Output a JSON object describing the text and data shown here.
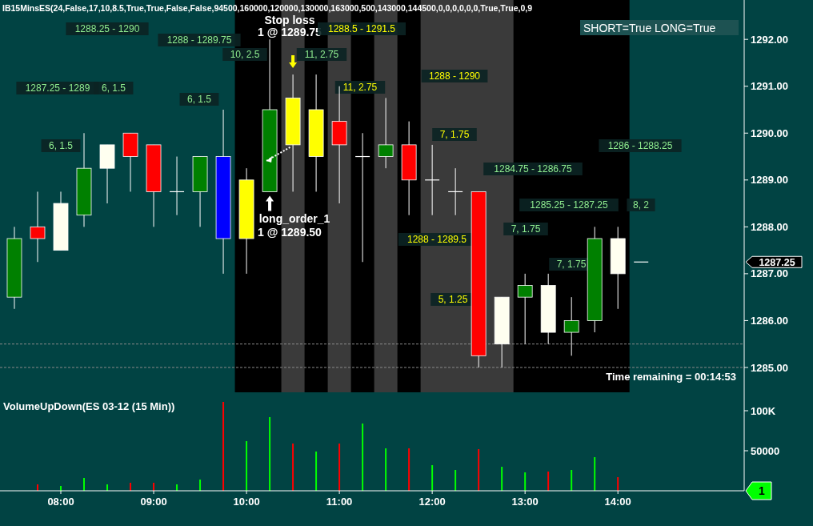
{
  "chart_data": [
    {
      "type": "candlestick",
      "title": "IB15MinsES(24,False,17,10,8.5,True,True,False,False,94500,160000,120000,130000,163000,500,143000,144500,0,0,0,0,0,0,True,True,0,9",
      "x": [
        7.5,
        7.75,
        8,
        8.25,
        8.5,
        8.75,
        9,
        9.25,
        9.5,
        9.75,
        10,
        10.25,
        10.5,
        10.75,
        11,
        11.25,
        11.5,
        11.75,
        12,
        12.25,
        12.5,
        12.75,
        13,
        13.25,
        13.5,
        13.75,
        14,
        14.25
      ],
      "ohlc": [
        [
          1286.5,
          1288,
          1286.25,
          1287.75
        ],
        [
          1288,
          1288.75,
          1287.25,
          1287.75
        ],
        [
          1288.5,
          1288.75,
          1287.5,
          1287.5
        ],
        [
          1288.25,
          1290,
          1288,
          1289.25
        ],
        [
          1289.75,
          1289.75,
          1288.5,
          1289.25
        ],
        [
          1290,
          1290,
          1288.75,
          1289.5
        ],
        [
          1289.75,
          1289.75,
          1288,
          1288.75
        ],
        [
          1288.75,
          1289.5,
          1288.25,
          1288.75
        ],
        [
          1288.75,
          1289.5,
          1288,
          1289.5
        ],
        [
          1289.5,
          1290.5,
          1287,
          1287.75
        ],
        [
          1287.75,
          1289.25,
          1287,
          1289
        ],
        [
          1288.75,
          1292,
          1288.75,
          1290.5
        ],
        [
          1289.75,
          1291.25,
          1288.75,
          1290.75
        ],
        [
          1290.5,
          1291.25,
          1288.75,
          1289.5
        ],
        [
          1290.25,
          1291,
          1288.5,
          1289.75
        ],
        [
          1289.5,
          1290,
          1287.25,
          1289.5
        ],
        [
          1289.5,
          1290.75,
          1289.25,
          1289.75
        ],
        [
          1289.75,
          1290.25,
          1288.25,
          1289
        ],
        [
          1289,
          1289.75,
          1288.25,
          1289
        ],
        [
          1288.75,
          1289.25,
          1288.25,
          1288.75
        ],
        [
          1288.75,
          1288.75,
          1285,
          1285.25
        ],
        [
          1286.5,
          1286.5,
          1285,
          1285.5
        ],
        [
          1286.5,
          1287,
          1285.5,
          1286.75
        ],
        [
          1286.75,
          1287,
          1285.5,
          1285.75
        ],
        [
          1285.75,
          1286.5,
          1285.25,
          1286
        ],
        [
          1286,
          1288,
          1285.75,
          1287.75
        ],
        [
          1287.75,
          1288,
          1286.25,
          1287
        ],
        [
          1287.25,
          1287.25,
          1287.25,
          1287.25
        ]
      ],
      "colors": [
        "#008000",
        "#ff0000",
        "#fffff0",
        "#008000",
        "#fffff0",
        "#ff0000",
        "#ff0000",
        "#ffffff",
        "#008000",
        "#0000ff",
        "#ffff00",
        "#008000",
        "#ffff00",
        "#ffff00",
        "#ff0000",
        "#ffffff",
        "#008000",
        "#ff0000",
        "#ffffff",
        "#ffffff",
        "#ff0000",
        "#fffff0",
        "#008000",
        "#fffff0",
        "#008000",
        "#008000",
        "#fffff0",
        "#ffffff"
      ],
      "xlim": [
        7.345,
        15.36
      ],
      "ylim": [
        1284.47,
        1292.84
      ],
      "yticks": [
        {
          "value": 1285,
          "label": "1285.00"
        },
        {
          "value": 1286,
          "label": "1286.00"
        },
        {
          "value": 1287,
          "label": "1287.00"
        },
        {
          "value": 1288,
          "label": "1288.00"
        },
        {
          "value": 1289,
          "label": "1289.00"
        },
        {
          "value": 1290,
          "label": "1290.00"
        },
        {
          "value": 1291,
          "label": "1291.00"
        },
        {
          "value": 1292,
          "label": "1292.00"
        }
      ],
      "tick_labels": "y",
      "bands": [
        {
          "axis": "x",
          "from": 9.875,
          "to": 14.125,
          "color": "#000000"
        },
        {
          "axis": "x",
          "from": 10.375,
          "to": 10.625,
          "color": "#3a3a3a"
        },
        {
          "axis": "x",
          "from": 10.875,
          "to": 11.125,
          "color": "#3a3a3a"
        },
        {
          "axis": "x",
          "from": 11.375,
          "to": 11.625,
          "color": "#3a3a3a"
        },
        {
          "axis": "x",
          "from": 11.875,
          "to": 12.875,
          "color": "#3a3a3a"
        }
      ],
      "ref_lines": [
        {
          "axis": "y",
          "value": 1285.5,
          "color": "#8a8a8a",
          "line_style": "dashed"
        },
        {
          "axis": "y",
          "value": 1285,
          "color": "#8a8a8a",
          "line_style": "dashed"
        }
      ],
      "annotations": [
        "SHORT=True LONG=True",
        "Time remaining = 00:14:53",
        "1287.25",
        "1288.25 - 1290",
        "1288 - 1289.75",
        "1287.25 - 1289",
        "6, 1.5",
        "6, 1.5",
        "6, 1.5",
        "Stop loss",
        "1 @ 1289.75",
        "10, 2.5",
        "11, 2.75",
        "1288.5 - 1291.5",
        "long_order_1",
        "1 @ 1289.50",
        "11, 2.75",
        "1288 - 1290",
        "7, 1.75",
        "1284.75 - 1286.75",
        "1288 - 1289.5",
        "5, 1.25",
        "7, 1.75",
        "1285.25 - 1287.25",
        "7, 1.75",
        "1286 - 1288.25",
        "8, 2"
      ]
    },
    {
      "type": "bar",
      "title": "VolumeUpDown(ES 03-12 (15 Min))",
      "x": [
        7.75,
        8,
        8.25,
        8.5,
        8.75,
        9,
        9.25,
        9.5,
        9.75,
        10,
        10.25,
        10.5,
        10.75,
        11,
        11.25,
        11.5,
        11.75,
        12,
        12.25,
        12.5,
        12.75,
        13,
        13.25,
        13.5,
        13.75,
        14
      ],
      "values": [
        8000,
        6000,
        16000,
        8000,
        10000,
        10000,
        8000,
        14000,
        111000,
        62000,
        92000,
        59000,
        49000,
        59000,
        84000,
        53000,
        53000,
        32000,
        26000,
        52000,
        30000,
        23000,
        24000,
        26000,
        42000,
        17000
      ],
      "colors": [
        "#ff0000",
        "#00ff00",
        "#00ff00",
        "#00ff00",
        "#ff0000",
        "#ff0000",
        "#00ff00",
        "#00ff00",
        "#ff0000",
        "#00ff00",
        "#00ff00",
        "#ff0000",
        "#00ff00",
        "#ff0000",
        "#00ff00",
        "#00ff00",
        "#ff0000",
        "#00ff00",
        "#00ff00",
        "#ff0000",
        "#00ff00",
        "#00ff00",
        "#ff0000",
        "#00ff00",
        "#00ff00",
        "#ff0000"
      ],
      "xlim": [
        7.345,
        15.36
      ],
      "ylim": [
        0,
        123000
      ],
      "xticks": [
        {
          "value": 8,
          "label": "08:00"
        },
        {
          "value": 9,
          "label": "09:00"
        },
        {
          "value": 10,
          "label": "10:00"
        },
        {
          "value": 11,
          "label": "11:00"
        },
        {
          "value": 12,
          "label": "12:00"
        },
        {
          "value": 13,
          "label": "13:00"
        },
        {
          "value": 14,
          "label": "14:00"
        }
      ],
      "yticks": [
        50000,
        {
          "value": 100000,
          "label": "100K"
        }
      ],
      "annotations": [
        "1"
      ]
    }
  ]
}
